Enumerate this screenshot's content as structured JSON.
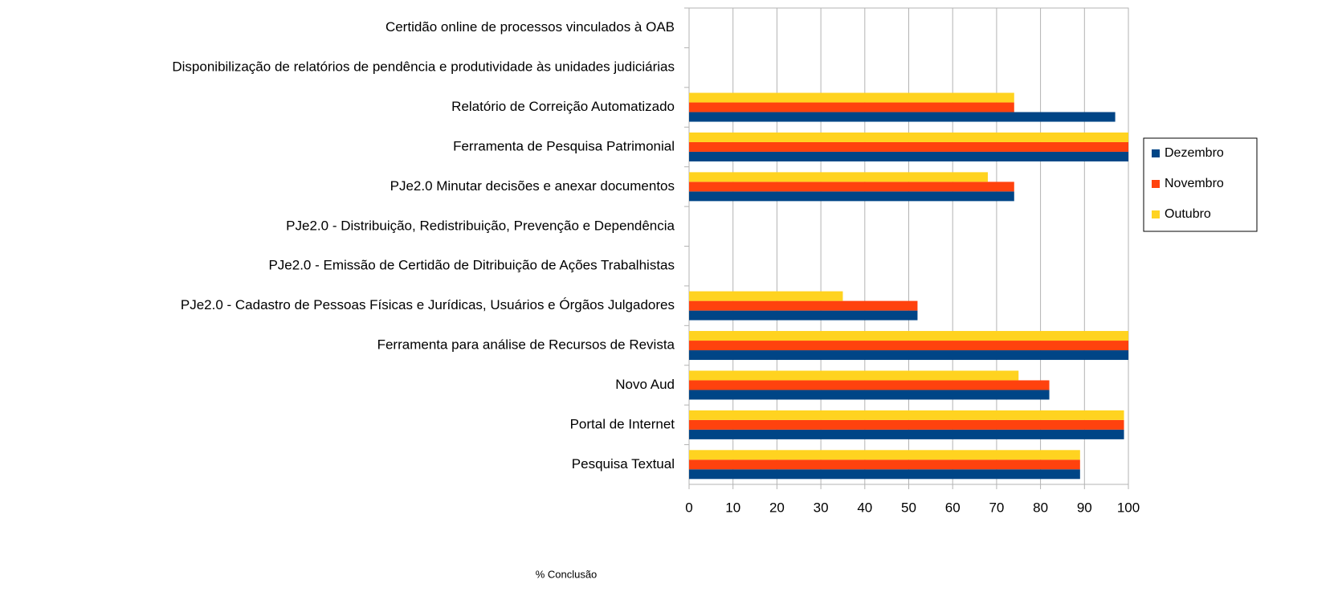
{
  "chart_data": {
    "type": "bar",
    "orientation": "horizontal",
    "x_axis_label": "% Conclusão",
    "categories": [
      "Certidão online de processos vinculados à OAB",
      "Disponibilização de relatórios de pendência e produtividade às unidades judiciárias",
      "Relatório de Correição Automatizado",
      "Ferramenta de Pesquisa Patrimonial",
      "PJe2.0 Minutar decisões e anexar documentos",
      "PJe2.0 - Distribuição, Redistribuição, Prevenção e Dependência",
      "PJe2.0 - Emissão de Certidão de Ditribuição de Ações Trabalhistas",
      "PJe2.0 - Cadastro de Pessoas Físicas e Jurídicas, Usuários e Órgãos Julgadores",
      "Ferramenta para análise de Recursos de Revista",
      "Novo Aud",
      "Portal de Internet",
      "Pesquisa Textual"
    ],
    "series": [
      {
        "name": "Dezembro",
        "color": "#004586",
        "values": [
          null,
          null,
          97,
          100,
          74,
          null,
          null,
          52,
          100,
          82,
          99,
          89
        ]
      },
      {
        "name": "Novembro",
        "color": "#ff420e",
        "values": [
          null,
          null,
          74,
          100,
          74,
          null,
          null,
          52,
          100,
          82,
          99,
          89
        ]
      },
      {
        "name": "Outubro",
        "color": "#ffd320",
        "values": [
          null,
          null,
          74,
          100,
          68,
          null,
          null,
          35,
          100,
          75,
          99,
          89
        ]
      }
    ],
    "xlim": [
      0,
      100
    ],
    "xticks": [
      0,
      10,
      20,
      30,
      40,
      50,
      60,
      70,
      80,
      90,
      100
    ],
    "grid": true,
    "legend": "right"
  }
}
